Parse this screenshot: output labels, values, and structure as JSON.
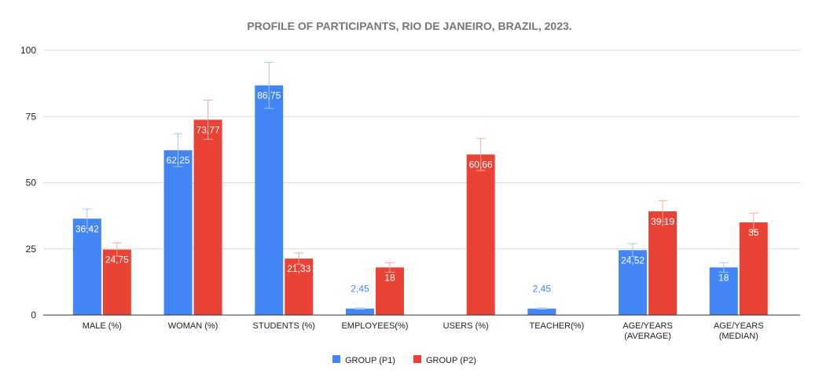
{
  "chart_data": {
    "type": "bar",
    "title": "PROFILE OF PARTICIPANTS, RIO DE JANEIRO, BRAZIL, 2023.",
    "categories": [
      [
        "MALE (%)"
      ],
      [
        "WOMAN  (%)"
      ],
      [
        "STUDENTS (%)"
      ],
      [
        "EMPLOYEES(%)"
      ],
      [
        "USERS (%)"
      ],
      [
        "TEACHER(%)"
      ],
      [
        "AGE/YEARS",
        "(AVERAGE)"
      ],
      [
        "AGE/YEARS",
        "(MEDIAN)"
      ]
    ],
    "series": [
      {
        "name": "GROUP (P1)",
        "color": "#4285f4",
        "values": [
          36.42,
          62.25,
          86.75,
          2.45,
          null,
          2.45,
          24.52,
          18
        ],
        "labels": [
          "36,42",
          "62,25",
          "86,75",
          "2,45",
          "",
          "2,45",
          "24,52",
          "18"
        ]
      },
      {
        "name": "GROUP (P2)",
        "color": "#ea4335",
        "values": [
          24.75,
          73.77,
          21.33,
          18,
          60.66,
          null,
          39.19,
          35
        ],
        "labels": [
          "24,75",
          "73,77",
          "21,33",
          "18",
          "60,66",
          "",
          "39,19",
          "35"
        ]
      }
    ],
    "error_bars": "±10%",
    "ylim": [
      0,
      100
    ],
    "yticks": [
      0,
      25,
      50,
      75,
      100
    ],
    "grid": true,
    "legend": "bottom",
    "xlabel": "",
    "ylabel": ""
  }
}
